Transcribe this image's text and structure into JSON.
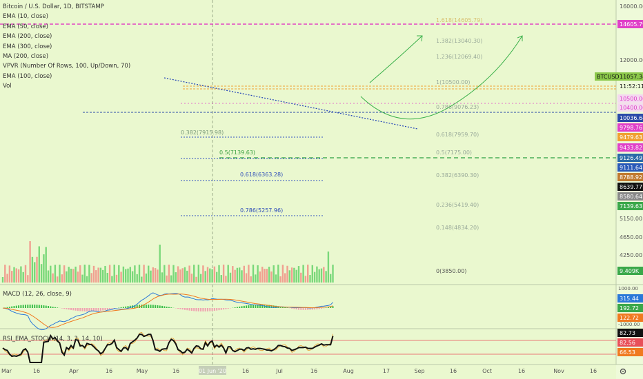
{
  "chart_data": [
    {
      "type": "candlestick",
      "title": "Bitcoin / U.S. Dollar, 1D, BITSTAMP",
      "symbol": "BTCUSD",
      "symbol_price": "11057.34",
      "countdown": "11:52:11",
      "indicators": [
        "EMA (10, close)",
        "EMA (50, close)",
        "EMA (200, close)",
        "EMA (300, close)",
        "MA (200, close)",
        "VPVR (Number Of Rows, 100, Up/Down, 70)",
        "EMA (100, close)",
        "Vol"
      ],
      "price_axis_ticks": [
        "16000.00",
        "12000.00",
        "5150.00",
        "4650.00",
        "4250.00"
      ],
      "price_tags": [
        {
          "label": "14605.79",
          "color": "#e040c8"
        },
        {
          "label": "10500.00",
          "color": "#e040c8"
        },
        {
          "label": "10400.00",
          "color": "#e040c8"
        },
        {
          "label": "10036.64",
          "color": "#2a4aa8"
        },
        {
          "label": "9798.76",
          "color": "#e040c8"
        },
        {
          "label": "9479.63",
          "color": "#f0a030"
        },
        {
          "label": "9433.82",
          "color": "#e040c8"
        },
        {
          "label": "9126.49",
          "color": "#2a6aa8"
        },
        {
          "label": "9111.64",
          "color": "#2a5ab8"
        },
        {
          "label": "8788.92",
          "color": "#c07a30"
        },
        {
          "label": "8639.77",
          "color": "#111111"
        },
        {
          "label": "8580.64",
          "color": "#888888"
        },
        {
          "label": "7139.63",
          "color": "#3aa84a"
        },
        {
          "label": "9.409K",
          "color": "#3aa84a"
        }
      ],
      "fib_levels_left": [
        "0.382(7915.98)",
        "0.5(7139.63)",
        "0.618(6363.28)",
        "0.786(5257.96)"
      ],
      "fib_levels_right": [
        "1.618(14605.79)",
        "1.382(13040.30)",
        "1.236(12069.40)",
        "1(10500.00)",
        "0.786(9076.23)",
        "0.618(7959.70)",
        "0.5(7175.00)",
        "0.382(6390.30)",
        "0.236(5419.40)",
        "0.148(4834.20)",
        "0(3850.00)"
      ],
      "x_ticks": [
        "Mar",
        "16",
        "Apr",
        "16",
        "May",
        "16",
        "01 Jun '20",
        "16",
        "Jul",
        "16",
        "Aug",
        "17",
        "Sep",
        "16",
        "Oct",
        "16",
        "Nov",
        "16"
      ],
      "approx_closes": [
        8900,
        8700,
        8600,
        8150,
        7900,
        7950,
        7900,
        7800,
        7850,
        7900,
        7800,
        7450,
        5000,
        5400,
        5600,
        5200,
        5300,
        5400,
        5700,
        6150,
        6400,
        6700,
        6400,
        6650,
        6550,
        6750,
        5900,
        5850,
        6450,
        6500,
        6850,
        6750,
        6900,
        6800,
        6700,
        6800,
        6900,
        7300,
        7350,
        7200,
        6850,
        6650,
        6550,
        6600,
        6850,
        7150,
        7250,
        7050,
        7100,
        7550,
        6900,
        6950,
        6850,
        7050,
        7150,
        7300,
        7450,
        7700,
        7800,
        8250,
        8800,
        8950,
        8850,
        9200,
        9450,
        9900,
        9700,
        8750,
        8600,
        8800,
        9300,
        9800,
        9600,
        9400,
        9650,
        9700,
        9800,
        9600,
        9250,
        8800,
        9150,
        9550,
        9450,
        9000,
        9200,
        9050,
        9350,
        9450,
        9300,
        9650,
        9450,
        9750,
        10200,
        9550,
        9650,
        9750,
        9800,
        9750,
        9600,
        9700,
        9800,
        9450,
        9350,
        9450,
        9450,
        9550,
        9500,
        9450,
        9400,
        9300,
        9350,
        9400,
        9450,
        9400,
        9300,
        9150,
        9100,
        9150,
        9100,
        9200,
        9300,
        9450,
        9400,
        9350,
        9250,
        9200,
        9250,
        9150,
        9200,
        9250,
        9300,
        9250,
        9300,
        9250,
        9150,
        9200,
        9250,
        9350,
        9550,
        9600,
        9650,
        9550,
        9650,
        9750,
        9950,
        11050
      ],
      "projection_arrows": "two green arrows pointing up-right toward ~14000"
    },
    {
      "type": "line",
      "title": "MACD (12, 26, close, 9)",
      "axis_ticks": [
        "1000.00",
        "-1000.00"
      ],
      "value_tags": [
        {
          "label": "315.44",
          "color": "#2a78d8"
        },
        {
          "label": "192.72",
          "color": "#3aa84a"
        },
        {
          "label": "122.72",
          "color": "#f07a20"
        }
      ]
    },
    {
      "type": "line",
      "title": "RSI_EMA_STOCH (14, 3, 3, 14, 10)",
      "value_tags": [
        {
          "label": "82.73",
          "color": "#111111"
        },
        {
          "label": "82.56",
          "color": "#e8505a"
        },
        {
          "label": "66.53",
          "color": "#f07a20"
        }
      ]
    }
  ]
}
